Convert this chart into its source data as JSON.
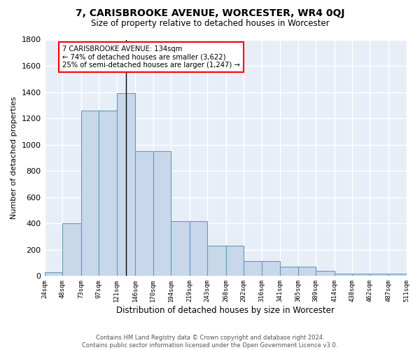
{
  "title": "7, CARISBROOKE AVENUE, WORCESTER, WR4 0QJ",
  "subtitle": "Size of property relative to detached houses in Worcester",
  "xlabel": "Distribution of detached houses by size in Worcester",
  "ylabel": "Number of detached properties",
  "bar_color": "#c8d8ea",
  "bar_edge_color": "#6699bb",
  "background_color": "#e8eef8",
  "grid_color": "white",
  "bins": [
    24,
    48,
    73,
    97,
    121,
    146,
    170,
    194,
    219,
    243,
    268,
    292,
    316,
    341,
    365,
    389,
    414,
    438,
    462,
    487,
    511
  ],
  "bin_labels": [
    "24sqm",
    "48sqm",
    "73sqm",
    "97sqm",
    "121sqm",
    "146sqm",
    "170sqm",
    "194sqm",
    "219sqm",
    "243sqm",
    "268sqm",
    "292sqm",
    "316sqm",
    "341sqm",
    "365sqm",
    "389sqm",
    "414sqm",
    "438sqm",
    "462sqm",
    "487sqm",
    "511sqm"
  ],
  "values": [
    30,
    400,
    1260,
    1260,
    1390,
    950,
    950,
    415,
    415,
    230,
    230,
    115,
    115,
    70,
    70,
    40,
    20,
    20,
    20,
    20
  ],
  "property_size": 134,
  "property_line_color": "black",
  "ylim": [
    0,
    1800
  ],
  "yticks": [
    0,
    200,
    400,
    600,
    800,
    1000,
    1200,
    1400,
    1600,
    1800
  ],
  "annotation_text": "7 CARISBROOKE AVENUE: 134sqm\n← 74% of detached houses are smaller (3,622)\n25% of semi-detached houses are larger (1,247) →",
  "annotation_box_color": "white",
  "annotation_box_edge_color": "red",
  "footer_line1": "Contains HM Land Registry data © Crown copyright and database right 2024.",
  "footer_line2": "Contains public sector information licensed under the Open Government Licence v3.0."
}
